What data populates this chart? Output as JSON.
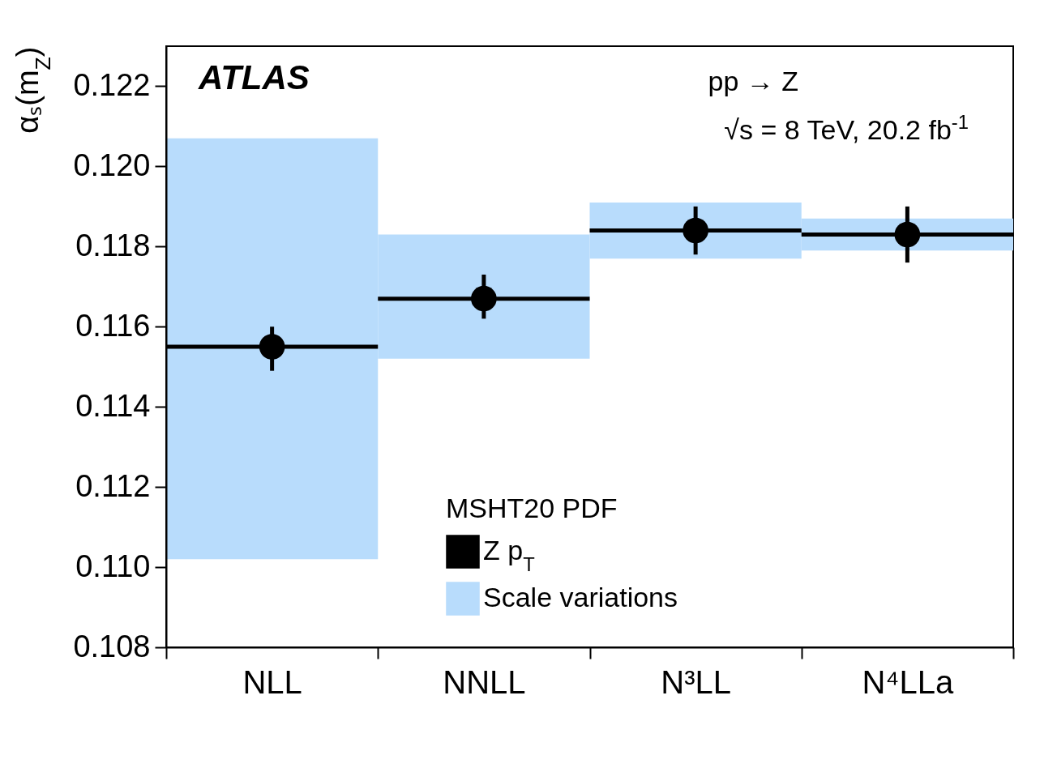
{
  "chart_data": {
    "type": "scatter",
    "ylabel": "αₛ(m$_{Z}$)",
    "legend_title": "MSHT20 PDF",
    "categories": [
      "NLL",
      "NNLL",
      "N³LL",
      "N⁴LLa"
    ],
    "series": [
      {
        "name": "Z p$_{T}$",
        "color": "#000000",
        "values": [
          0.1155,
          0.1167,
          0.1184,
          0.1183
        ],
        "errors": [
          [
            0.1149,
            0.116
          ],
          [
            0.1162,
            0.1173
          ],
          [
            0.1178,
            0.119
          ],
          [
            0.1176,
            0.119
          ]
        ]
      },
      {
        "name": "Scale variations",
        "type": "bar",
        "color": "#b8dcfc",
        "base": [
          0.1102,
          0.1152,
          0.1177,
          0.1179
        ],
        "values": [
          0.0105,
          0.0031,
          0.0014,
          0.0008
        ]
      }
    ],
    "ylim": [
      0.108,
      0.123
    ],
    "yticks": [
      0.108,
      {
        "value": 0.11,
        "label": "0.110"
      },
      0.112,
      0.114,
      0.116,
      0.118,
      {
        "value": 0.12,
        "label": "0.120"
      },
      0.122
    ],
    "annotations": [
      "ATLAS",
      "pp → Z",
      "√s = 8 TeV, 20.2 fb$^{-1}$"
    ],
    "legend": "bottom",
    "marker": "circle"
  }
}
